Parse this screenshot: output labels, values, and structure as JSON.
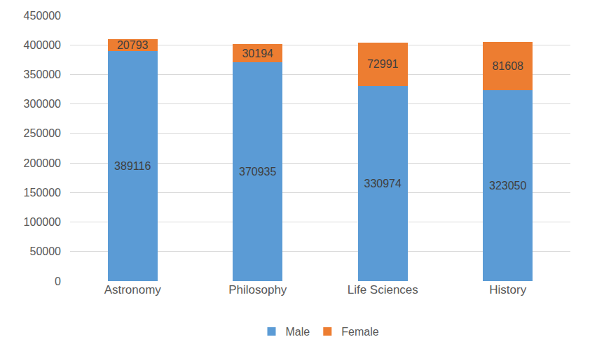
{
  "chart_data": {
    "type": "bar",
    "categories": [
      "Astronomy",
      "Philosophy",
      "Life Sciences",
      "History"
    ],
    "series": [
      {
        "name": "Male",
        "color": "#5b9bd5",
        "values": [
          389116,
          370935,
          330974,
          323050
        ]
      },
      {
        "name": "Female",
        "color": "#ed7d31",
        "values": [
          20793,
          30194,
          72991,
          81608
        ]
      }
    ],
    "ylim": [
      0,
      450000
    ],
    "yticks": [
      0,
      50000,
      100000,
      150000,
      200000,
      250000,
      300000,
      350000,
      400000,
      450000
    ],
    "grid": true,
    "legend": "bottom",
    "stacked": true,
    "data_labels": true
  }
}
